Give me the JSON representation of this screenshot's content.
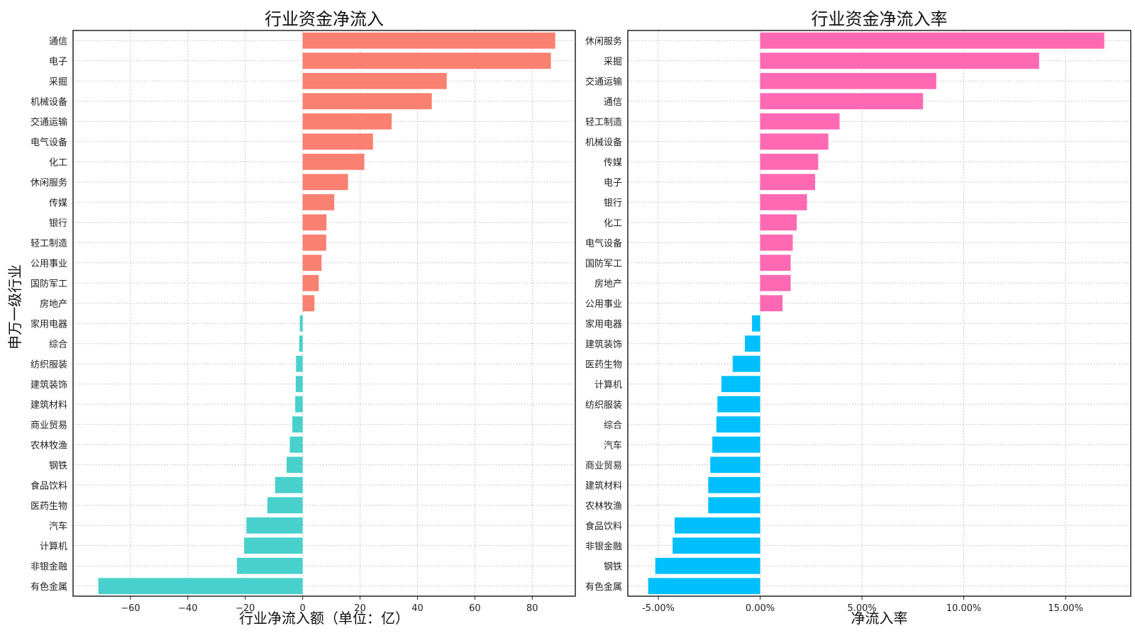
{
  "ylabel": "申万一级行业",
  "chart_data": [
    {
      "type": "bar",
      "orientation": "horizontal",
      "title": "行业资金净流入",
      "xlabel": "行业净流入额（单位：亿）",
      "ylabel": "申万一级行业",
      "xlim": [
        -80,
        95
      ],
      "xticks": [
        -60,
        -40,
        -20,
        0,
        20,
        40,
        60,
        80
      ],
      "tick_format": "int",
      "grid": true,
      "positive_color": "#fa8072",
      "negative_color": "#48d1cc",
      "categories": [
        "通信",
        "电子",
        "采掘",
        "机械设备",
        "交通运输",
        "电气设备",
        "化工",
        "休闲服务",
        "传媒",
        "银行",
        "轻工制造",
        "公用事业",
        "国防军工",
        "房地产",
        "家用电器",
        "综合",
        "纺织服装",
        "建筑装饰",
        "建筑材料",
        "商业贸易",
        "农林牧渔",
        "钢铁",
        "食品饮料",
        "医药生物",
        "汽车",
        "计算机",
        "非银金融",
        "有色金属"
      ],
      "values": [
        88,
        86.5,
        50.2,
        45,
        31,
        24.5,
        21.5,
        15.8,
        11,
        8.3,
        8.2,
        6.6,
        5.6,
        4.1,
        -1,
        -1.2,
        -2.3,
        -2.4,
        -2.6,
        -3.6,
        -4.5,
        -5.6,
        -9.6,
        -12.3,
        -19.6,
        -20.4,
        -22.9,
        -71.2
      ]
    },
    {
      "type": "bar",
      "orientation": "horizontal",
      "title": "行业资金净流入率",
      "xlabel": "净流入率",
      "ylabel": "",
      "xlim": [
        -6.5,
        18.2
      ],
      "xticks": [
        -5,
        0,
        5,
        10,
        15
      ],
      "tick_format": "pct2",
      "grid": true,
      "positive_color": "#ff69b4",
      "negative_color": "#00bfff",
      "categories": [
        "休闲服务",
        "采掘",
        "交通运输",
        "通信",
        "轻工制造",
        "机械设备",
        "传媒",
        "电子",
        "银行",
        "化工",
        "电气设备",
        "国防军工",
        "房地产",
        "公用事业",
        "家用电器",
        "建筑装饰",
        "医药生物",
        "计算机",
        "纺织服装",
        "综合",
        "汽车",
        "商业贸易",
        "建筑材料",
        "农林牧渔",
        "食品饮料",
        "非银金融",
        "钢铁",
        "有色金属"
      ],
      "values": [
        16.9,
        13.7,
        8.65,
        8,
        3.9,
        3.35,
        2.85,
        2.7,
        2.3,
        1.8,
        1.6,
        1.5,
        1.5,
        1.1,
        -0.4,
        -0.75,
        -1.35,
        -1.9,
        -2.1,
        -2.15,
        -2.35,
        -2.45,
        -2.55,
        -2.55,
        -4.2,
        -4.3,
        -5.15,
        -5.5
      ]
    }
  ]
}
